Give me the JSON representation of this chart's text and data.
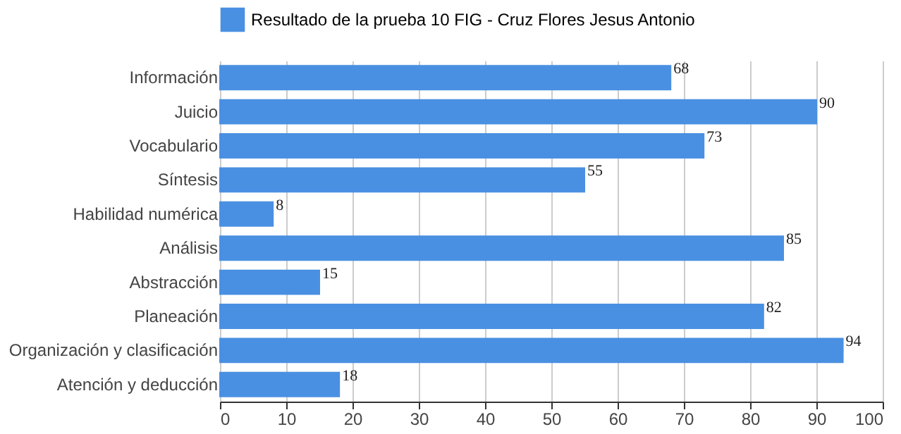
{
  "chart_data": {
    "type": "bar",
    "orientation": "horizontal",
    "categories": [
      "Información",
      "Juicio",
      "Vocabulario",
      "Síntesis",
      "Habilidad numérica",
      "Análisis",
      "Abstracción",
      "Planeación",
      "Organización y clasificación",
      "Atención y deducción"
    ],
    "series": [
      {
        "name": "Resultado de la prueba 10 FIG - Cruz Flores  Jesus Antonio",
        "color": "#4a90e2",
        "values": [
          68,
          90,
          73,
          55,
          8,
          85,
          15,
          82,
          94,
          18
        ]
      }
    ],
    "xlim": [
      0,
      100
    ],
    "xticks": [
      0,
      10,
      20,
      30,
      40,
      50,
      60,
      70,
      80,
      90,
      100
    ],
    "grid": "x",
    "legend": "top",
    "data_labels": true
  }
}
